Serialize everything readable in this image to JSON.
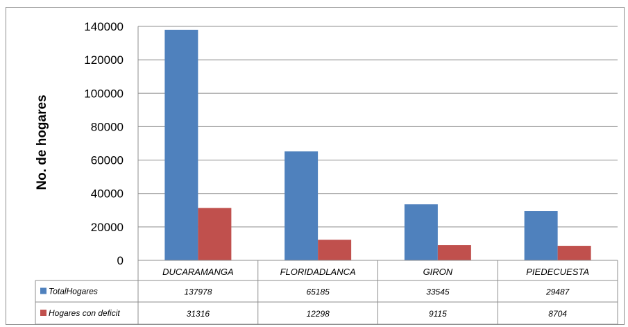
{
  "chart_data": {
    "type": "bar",
    "title": "",
    "xlabel": "",
    "ylabel": "No. de hogares",
    "ylim": [
      0,
      140000
    ],
    "yticks": [
      0,
      20000,
      40000,
      60000,
      80000,
      100000,
      120000,
      140000
    ],
    "ytick_labels": [
      "0",
      "20000",
      "40000",
      "60000",
      "80000",
      "100000",
      "120000",
      "140000"
    ],
    "grid": true,
    "categories": [
      "DUCARAMANGA",
      "FLORIDADLANCA",
      "GIRON",
      "PIEDECUESTA"
    ],
    "series": [
      {
        "name": "TotalHogares",
        "color": "#4f81bd",
        "values": [
          137978,
          65185,
          33545,
          29487
        ],
        "value_labels": [
          "137978",
          "65185",
          "33545",
          "29487"
        ]
      },
      {
        "name": "Hogares con deficit",
        "color": "#c0504d",
        "values": [
          31316,
          12298,
          9115,
          8704
        ],
        "value_labels": [
          "31316",
          "12298",
          "9115",
          "8704"
        ]
      }
    ],
    "legend": "data-table"
  }
}
